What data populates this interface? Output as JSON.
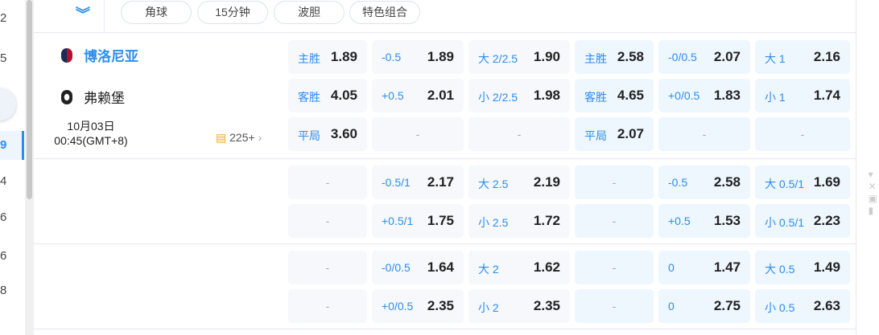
{
  "sidebar": {
    "numbers": [
      "2",
      "5",
      "9",
      "4",
      "6",
      "6",
      "8"
    ],
    "active": "9"
  },
  "filters": {
    "expand_icon": "double-chevron-down",
    "tabs": [
      "角球",
      "15分钟",
      "波胆",
      "特色组合"
    ]
  },
  "match": {
    "home": "博洛尼亚",
    "away": "弗赖堡",
    "date": "10月03日",
    "time": "00:45(GMT+8)",
    "markets_count": "225+"
  },
  "groups": [
    {
      "rows": [
        [
          [
            "主胜",
            "1.89"
          ],
          [
            "-0.5",
            "1.89"
          ],
          [
            "大 2/2.5",
            "1.90"
          ],
          [
            "主胜",
            "2.58"
          ],
          [
            "-0/0.5",
            "2.07"
          ],
          [
            "大 1",
            "2.16"
          ]
        ],
        [
          [
            "客胜",
            "4.05"
          ],
          [
            "+0.5",
            "2.01"
          ],
          [
            "小 2/2.5",
            "1.98"
          ],
          [
            "客胜",
            "4.65"
          ],
          [
            "+0/0.5",
            "1.83"
          ],
          [
            "小 1",
            "1.74"
          ]
        ],
        [
          [
            "平局",
            "3.60"
          ],
          [
            "-",
            ""
          ],
          [
            "-",
            ""
          ],
          [
            "平局",
            "2.07"
          ],
          [
            "-",
            ""
          ],
          [
            "-",
            ""
          ]
        ]
      ]
    },
    {
      "rows": [
        [
          [
            "-",
            ""
          ],
          [
            "-0.5/1",
            "2.17"
          ],
          [
            "大 2.5",
            "2.19"
          ],
          [
            "-",
            ""
          ],
          [
            "-0.5",
            "2.58"
          ],
          [
            "大 0.5/1",
            "1.69"
          ]
        ],
        [
          [
            "-",
            ""
          ],
          [
            "+0.5/1",
            "1.75"
          ],
          [
            "小 2.5",
            "1.72"
          ],
          [
            "-",
            ""
          ],
          [
            "+0.5",
            "1.53"
          ],
          [
            "小 0.5/1",
            "2.23"
          ]
        ]
      ]
    },
    {
      "rows": [
        [
          [
            "-",
            ""
          ],
          [
            "-0/0.5",
            "1.64"
          ],
          [
            "大 2",
            "1.62"
          ],
          [
            "-",
            ""
          ],
          [
            "0",
            "1.47"
          ],
          [
            "大 0.5",
            "1.49"
          ]
        ],
        [
          [
            "-",
            ""
          ],
          [
            "+0/0.5",
            "2.35"
          ],
          [
            "小 2",
            "2.35"
          ],
          [
            "-",
            ""
          ],
          [
            "0",
            "2.75"
          ],
          [
            "小 0.5",
            "2.63"
          ]
        ]
      ]
    }
  ],
  "colors": {
    "accent": "#2a8ef0",
    "cell": "#f6f8fb",
    "cell_blue": "#eef6fe"
  }
}
